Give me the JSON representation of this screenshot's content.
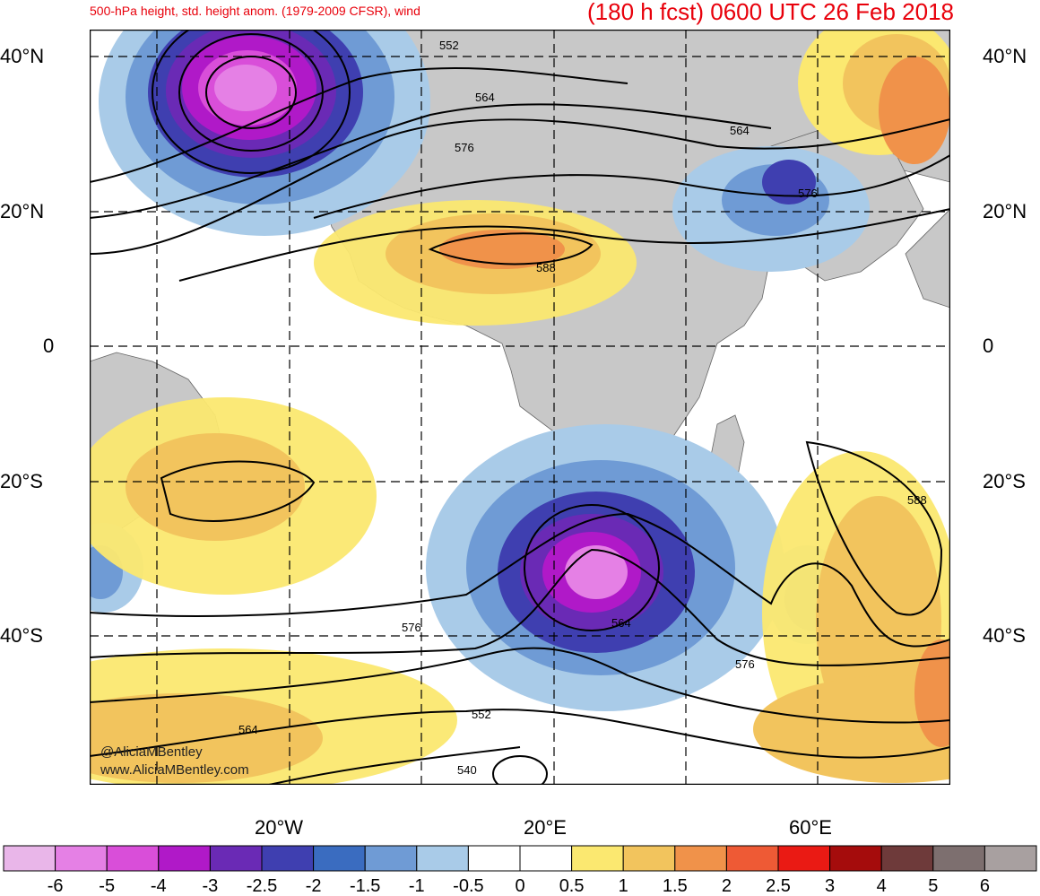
{
  "header": {
    "left_title": "500-hPa height, std. height anom. (1979-2009 CFSR), wind",
    "right_title": "(180 h fcst) 0600 UTC 26 Feb 2018"
  },
  "axes": {
    "lat_labels": [
      "40°N",
      "20°N",
      "0",
      "20°S",
      "40°S"
    ],
    "lon_labels": [
      "20°W",
      "20°E",
      "60°E"
    ]
  },
  "credits": [
    "@AliciaMBentley",
    "www.AliciaMBentley.com"
  ],
  "contour_labels": [
    "552",
    "564",
    "576",
    "588",
    "564",
    "576",
    "588",
    "576",
    "564",
    "576",
    "552",
    "564",
    "540"
  ],
  "colorbar": {
    "tick_labels": [
      "-6",
      "-5",
      "-4",
      "-3",
      "-2.5",
      "-2",
      "-1.5",
      "-1",
      "-0.5",
      "0",
      "0.5",
      "1",
      "1.5",
      "2",
      "2.5",
      "3",
      "4",
      "5",
      "6"
    ],
    "colors": [
      "#e9b6e9",
      "#e580e5",
      "#d94ed9",
      "#b019c8",
      "#6a2ab5",
      "#3f3fb0",
      "#3a6cc0",
      "#6f9bd5",
      "#a9cbe8",
      "#ffffff",
      "#ffffff",
      "#fbe870",
      "#f2c45d",
      "#f0924a",
      "#ee5a35",
      "#ea1a14",
      "#a50c0c",
      "#6e3a3a",
      "#7d6f6f",
      "#a8a0a0"
    ]
  },
  "colors": {
    "land": "#c8c8c8",
    "title": "#e8000b"
  }
}
